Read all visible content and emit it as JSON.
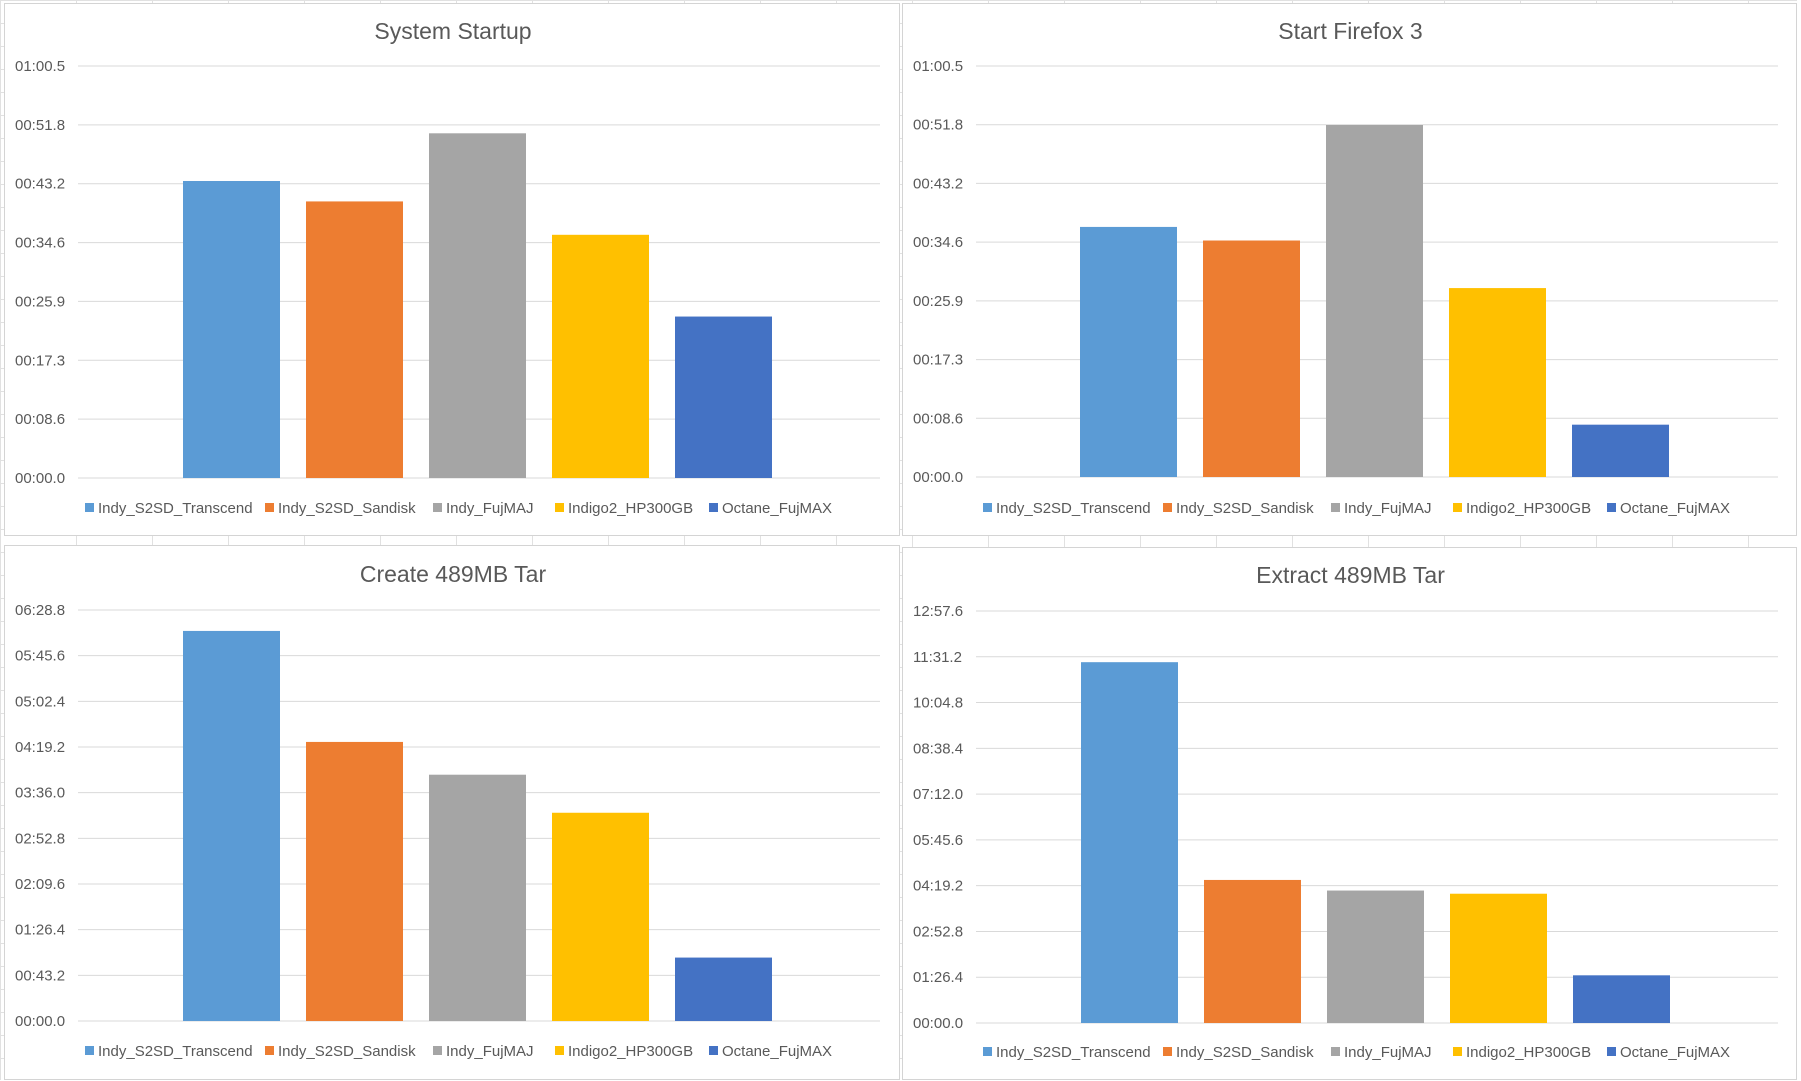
{
  "colors": {
    "Indy_S2SD_Transcend": "#5b9bd5",
    "Indy_S2SD_Sandisk": "#ed7d31",
    "Indy_FujMAJ": "#a5a5a5",
    "Indigo2_HP300GB": "#ffc000",
    "Octane_FujMAX": "#4472c4",
    "gridline": "#d9d9d9",
    "text": "#595959"
  },
  "chart_data": [
    {
      "type": "bar",
      "title": "System Startup",
      "categories": [
        "Indy_S2SD_Transcend",
        "Indy_S2SD_Sandisk",
        "Indy_FujMAJ",
        "Indigo2_HP300GB",
        "Octane_FujMAX"
      ],
      "values_seconds": [
        43.6,
        40.6,
        50.6,
        35.7,
        23.7
      ],
      "ylim_seconds": [
        0,
        60.48
      ],
      "yticks": [
        "00:00.0",
        "00:08.6",
        "00:17.3",
        "00:25.9",
        "00:34.6",
        "00:43.2",
        "00:51.8",
        "01:00.5"
      ],
      "legend": [
        "Indy_S2SD_Transcend",
        "Indy_S2SD_Sandisk",
        "Indy_FujMAJ",
        "Indigo2_HP300GB",
        "Octane_FujMAX"
      ],
      "legend_position": "bottom",
      "grid": true
    },
    {
      "type": "bar",
      "title": "Start Firefox 3",
      "categories": [
        "Indy_S2SD_Transcend",
        "Indy_S2SD_Sandisk",
        "Indy_FujMAJ",
        "Indigo2_HP300GB",
        "Octane_FujMAX"
      ],
      "values_seconds": [
        36.8,
        34.8,
        51.8,
        27.8,
        7.7
      ],
      "ylim_seconds": [
        0,
        60.48
      ],
      "yticks": [
        "00:00.0",
        "00:08.6",
        "00:17.3",
        "00:25.9",
        "00:34.6",
        "00:43.2",
        "00:51.8",
        "01:00.5"
      ],
      "legend": [
        "Indy_S2SD_Transcend",
        "Indy_S2SD_Sandisk",
        "Indy_FujMAJ",
        "Indigo2_HP300GB",
        "Octane_FujMAX"
      ],
      "legend_position": "bottom",
      "grid": true
    },
    {
      "type": "bar",
      "title": "Create 489MB Tar",
      "categories": [
        "Indy_S2SD_Transcend",
        "Indy_S2SD_Sandisk",
        "Indy_FujMAJ",
        "Indigo2_HP300GB",
        "Octane_FujMAX"
      ],
      "values_seconds": [
        369,
        264,
        233,
        197,
        60
      ],
      "ylim_seconds": [
        0,
        388.8
      ],
      "yticks": [
        "00:00.0",
        "00:43.2",
        "01:26.4",
        "02:09.6",
        "02:52.8",
        "03:36.0",
        "04:19.2",
        "05:02.4",
        "05:45.6",
        "06:28.8"
      ],
      "legend": [
        "Indy_S2SD_Transcend",
        "Indy_S2SD_Sandisk",
        "Indy_FujMAJ",
        "Indigo2_HP300GB",
        "Octane_FujMAX"
      ],
      "legend_position": "bottom",
      "grid": true
    },
    {
      "type": "bar",
      "title": "Extract 489MB Tar",
      "categories": [
        "Indy_S2SD_Transcend",
        "Indy_S2SD_Sandisk",
        "Indy_FujMAJ",
        "Indigo2_HP300GB",
        "Octane_FujMAX"
      ],
      "values_seconds": [
        681,
        270,
        250,
        244,
        90
      ],
      "ylim_seconds": [
        0,
        777.6
      ],
      "yticks": [
        "00:00.0",
        "01:26.4",
        "02:52.8",
        "04:19.2",
        "05:45.6",
        "07:12.0",
        "08:38.4",
        "10:04.8",
        "11:31.2",
        "12:57.6"
      ],
      "legend": [
        "Indy_S2SD_Transcend",
        "Indy_S2SD_Sandisk",
        "Indy_FujMAJ",
        "Indigo2_HP300GB",
        "Octane_FujMAX"
      ],
      "legend_position": "bottom",
      "grid": true
    }
  ]
}
